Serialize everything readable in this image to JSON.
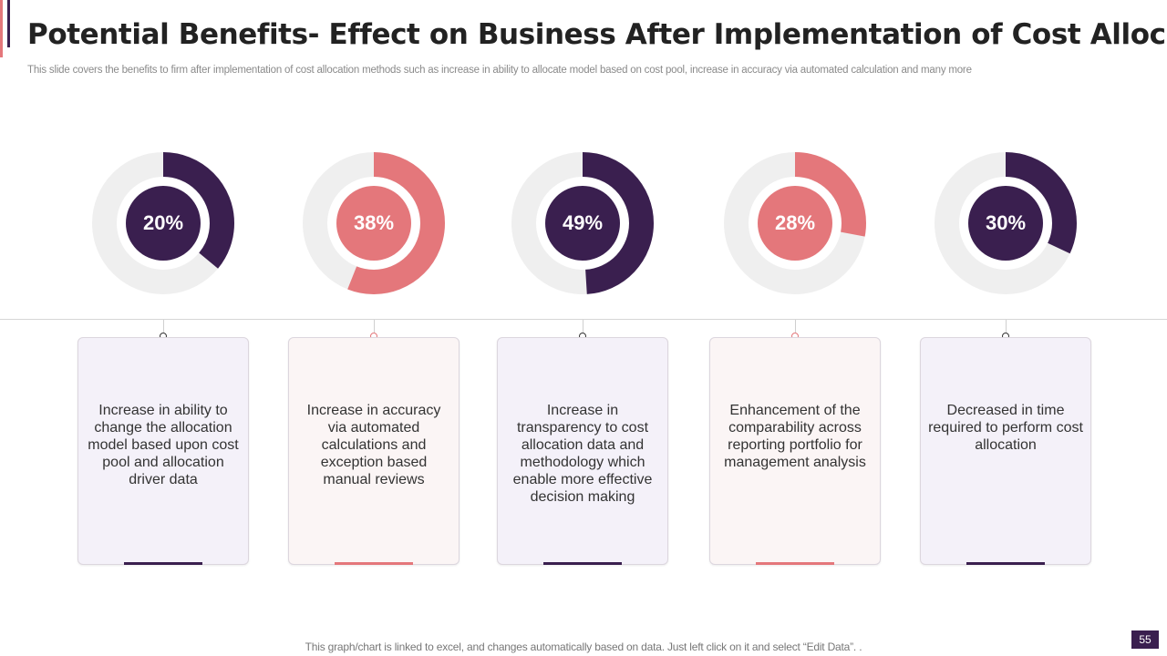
{
  "header": {
    "title": "Potential Benefits- Effect on Business After Implementation of Cost Allocation",
    "subtitle": "This slide covers the benefits to firm after implementation of cost allocation methods such as increase in ability to allocate model based on cost pool, increase in accuracy via automated calculation and many more"
  },
  "colors": {
    "purple": "#3a1f4f",
    "pink": "#e4777b",
    "track": "#efefef",
    "card_purple_bg": "#f4f1f9",
    "card_pink_bg": "#fbf5f5"
  },
  "chart_data": {
    "type": "pie",
    "title": "Potential Benefits- Effect on Business After Implementation of Cost Allocation",
    "categories": [
      "Increase in ability to change the allocation model based upon cost pool and allocation driver data",
      "Increase in accuracy via automated calculations and exception based manual reviews",
      "Increase in transparency to cost allocation data and methodology which enable more effective decision making",
      "Enhancement of the comparability across reporting portfolio for management analysis",
      "Decreased in time required to perform cost allocation"
    ],
    "values": [
      20,
      38,
      49,
      28,
      30
    ],
    "labels": [
      "20%",
      "38%",
      "49%",
      "28%",
      "30%"
    ]
  },
  "items": [
    {
      "percent": "20%",
      "arc": 0.36,
      "color": "purple",
      "text": "Increase  in ability to change the allocation model based upon cost pool and allocation driver data"
    },
    {
      "percent": "38%",
      "arc": 0.56,
      "color": "pink",
      "text": "Increase  in accuracy via automated calculations and exception based manual reviews"
    },
    {
      "percent": "49%",
      "arc": 0.49,
      "color": "purple",
      "text": "Increase  in transparency  to cost allocation data and methodology which enable more effective decision making"
    },
    {
      "percent": "28%",
      "arc": 0.28,
      "color": "pink",
      "text": "Enhancement  of the comparability across reporting portfolio for management analysis"
    },
    {
      "percent": "30%",
      "arc": 0.32,
      "color": "purple",
      "text": "Decreased in time required to perform cost allocation"
    }
  ],
  "footer": {
    "note": "This graph/chart is linked to excel,  and changes automatically based on data. Just left click on it and select “Edit Data”. .",
    "page_number": "55"
  }
}
